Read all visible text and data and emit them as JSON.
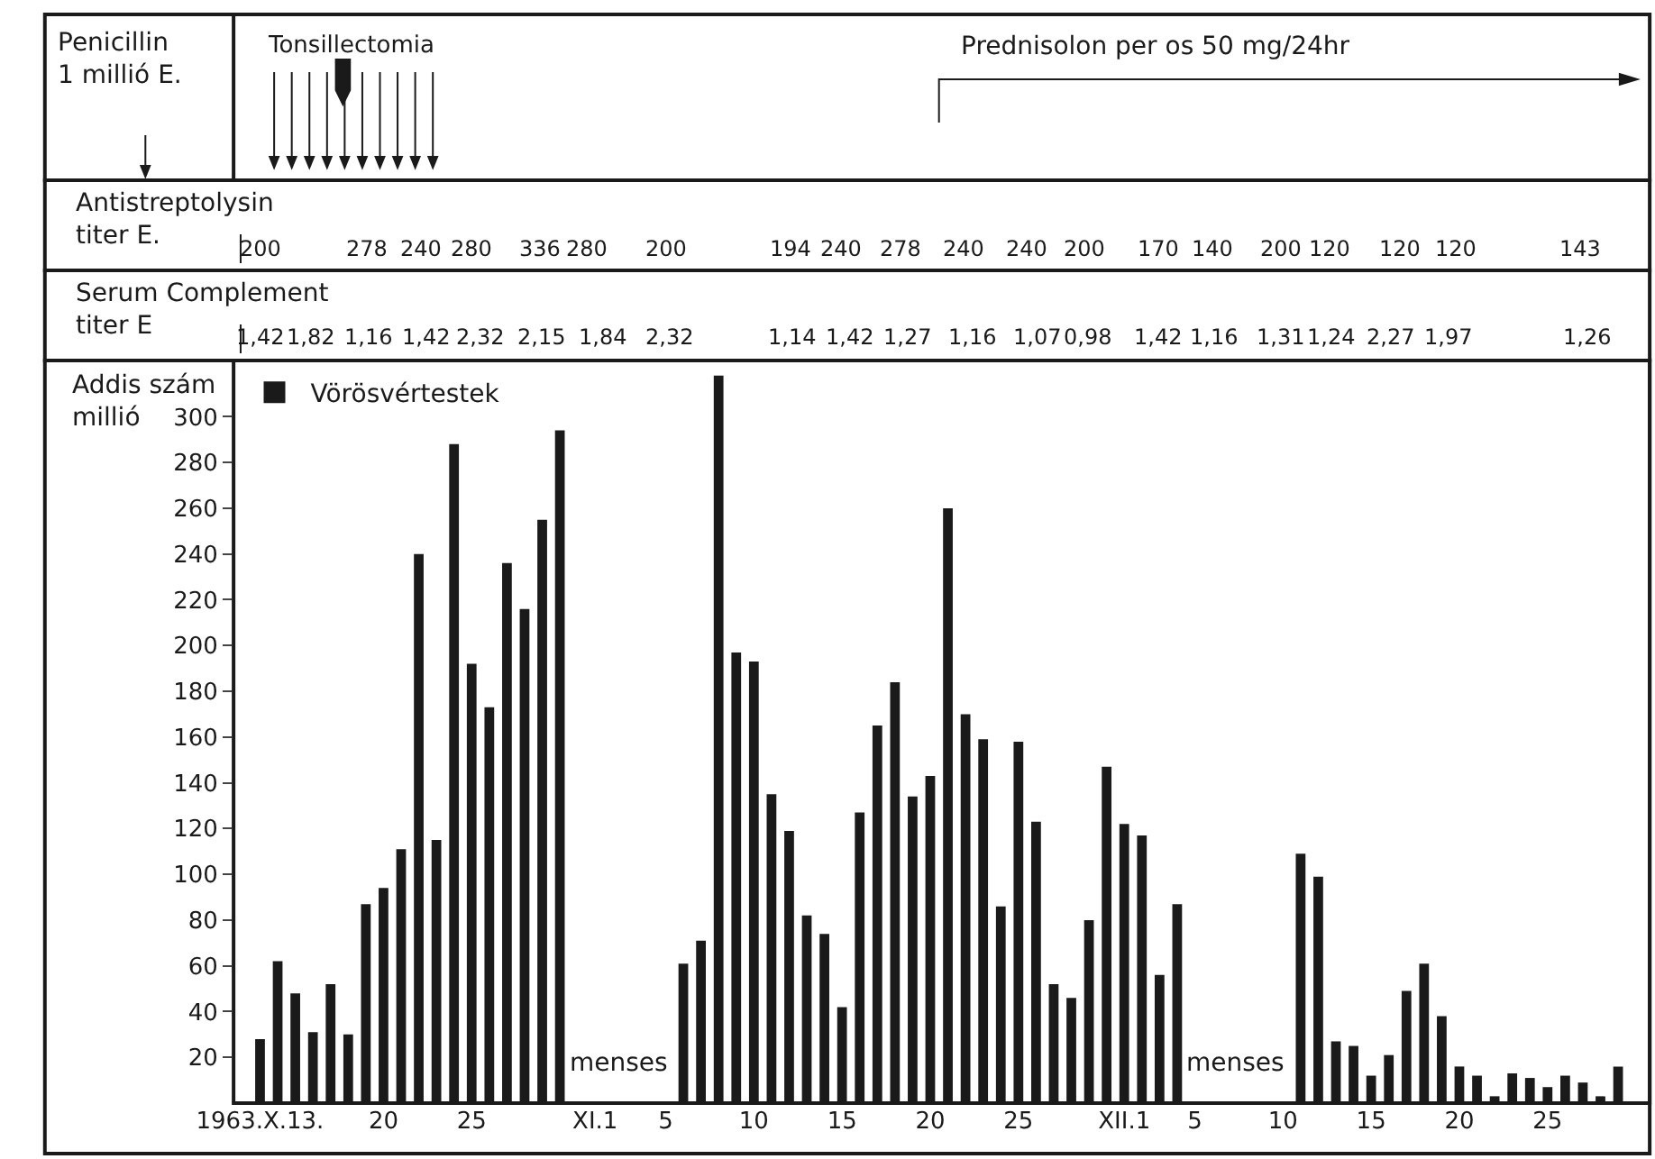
{
  "chart_data": {
    "type": "bar",
    "ylabel": "Addis szám\nmillió",
    "legend": "top left",
    "xlim": [
      "1963-10-11T12:00",
      "1963-12-30T19:00"
    ],
    "ylim": [
      0,
      323
    ],
    "yticks": [
      20,
      40,
      60,
      80,
      100,
      120,
      140,
      160,
      180,
      200,
      220,
      240,
      260,
      280,
      300
    ],
    "xticks": [
      {
        "value": "1963-10-13",
        "label": "1963.X.13."
      },
      {
        "value": "1963-10-20",
        "label": "20"
      },
      {
        "value": "1963-10-25",
        "label": "25"
      },
      {
        "value": "1963-11-01",
        "label": "XI.1"
      },
      {
        "value": "1963-11-05",
        "label": "5"
      },
      {
        "value": "1963-11-10",
        "label": "10"
      },
      {
        "value": "1963-11-15",
        "label": "15"
      },
      {
        "value": "1963-11-20",
        "label": "20"
      },
      {
        "value": "1963-11-25",
        "label": "25"
      },
      {
        "value": "1963-12-01",
        "label": "XII.1"
      },
      {
        "value": "1963-12-05",
        "label": "5"
      },
      {
        "value": "1963-12-10",
        "label": "10"
      },
      {
        "value": "1963-12-15",
        "label": "15"
      },
      {
        "value": "1963-12-20",
        "label": "20"
      },
      {
        "value": "1963-12-25",
        "label": "25"
      }
    ],
    "annotations": [
      "Penicillin\n1 millió E.",
      "Tonsillectomia",
      "Prednisolon per os 50 mg/24hr",
      "Antistreptolysin\ntiter E.",
      "200",
      "278",
      "240",
      "280",
      "336",
      "280",
      "200",
      "194",
      "240",
      "278",
      "240",
      "240",
      "200",
      "170",
      "140",
      "200",
      "120",
      "120",
      "120",
      "143",
      "Serum Complement\ntiter E",
      "1,42",
      "1,82",
      "1,16",
      "1,42",
      "2,32",
      "2,15",
      "1,84",
      "2,32",
      "1,14",
      "1,42",
      "1,27",
      "1,16",
      "1,07",
      "0,98",
      "1,42",
      "1,16",
      "1,31",
      "1,24",
      "2,27",
      "1,97",
      "1,26",
      "menses",
      "menses"
    ],
    "series": [
      {
        "name": "Vörösvértestek",
        "color": "#1a1a1a",
        "x": [
          "1963-10-13",
          "1963-10-14",
          "1963-10-15",
          "1963-10-16",
          "1963-10-17",
          "1963-10-18",
          "1963-10-19",
          "1963-10-20",
          "1963-10-21",
          "1963-10-22",
          "1963-10-23",
          "1963-10-24",
          "1963-10-25",
          "1963-10-26",
          "1963-10-27",
          "1963-10-28",
          "1963-10-29",
          "1963-10-30",
          "1963-11-06",
          "1963-11-07",
          "1963-11-08",
          "1963-11-09",
          "1963-11-10",
          "1963-11-11",
          "1963-11-12",
          "1963-11-13",
          "1963-11-14",
          "1963-11-15",
          "1963-11-16",
          "1963-11-17",
          "1963-11-18",
          "1963-11-19",
          "1963-11-20",
          "1963-11-21",
          "1963-11-22",
          "1963-11-23",
          "1963-11-24",
          "1963-11-25",
          "1963-11-26",
          "1963-11-27",
          "1963-11-28",
          "1963-11-29",
          "1963-11-30",
          "1963-12-01",
          "1963-12-02",
          "1963-12-03",
          "1963-12-04",
          "1963-12-11",
          "1963-12-12",
          "1963-12-13",
          "1963-12-14",
          "1963-12-15",
          "1963-12-16",
          "1963-12-17",
          "1963-12-18",
          "1963-12-19",
          "1963-12-20",
          "1963-12-21",
          "1963-12-22",
          "1963-12-23",
          "1963-12-24",
          "1963-12-25",
          "1963-12-26",
          "1963-12-27",
          "1963-12-28",
          "1963-12-29"
        ],
        "values": [
          28,
          62,
          48,
          31,
          52,
          30,
          87,
          94,
          111,
          240,
          115,
          288,
          192,
          173,
          236,
          216,
          255,
          294,
          61,
          71,
          318,
          197,
          193,
          135,
          119,
          82,
          74,
          42,
          127,
          165,
          184,
          134,
          143,
          260,
          170,
          159,
          86,
          158,
          123,
          52,
          46,
          80,
          147,
          122,
          117,
          56,
          87,
          109,
          99,
          27,
          25,
          12,
          21,
          49,
          61,
          38,
          16,
          12,
          3,
          13,
          11,
          7,
          12,
          9,
          3,
          16
        ]
      }
    ]
  }
}
